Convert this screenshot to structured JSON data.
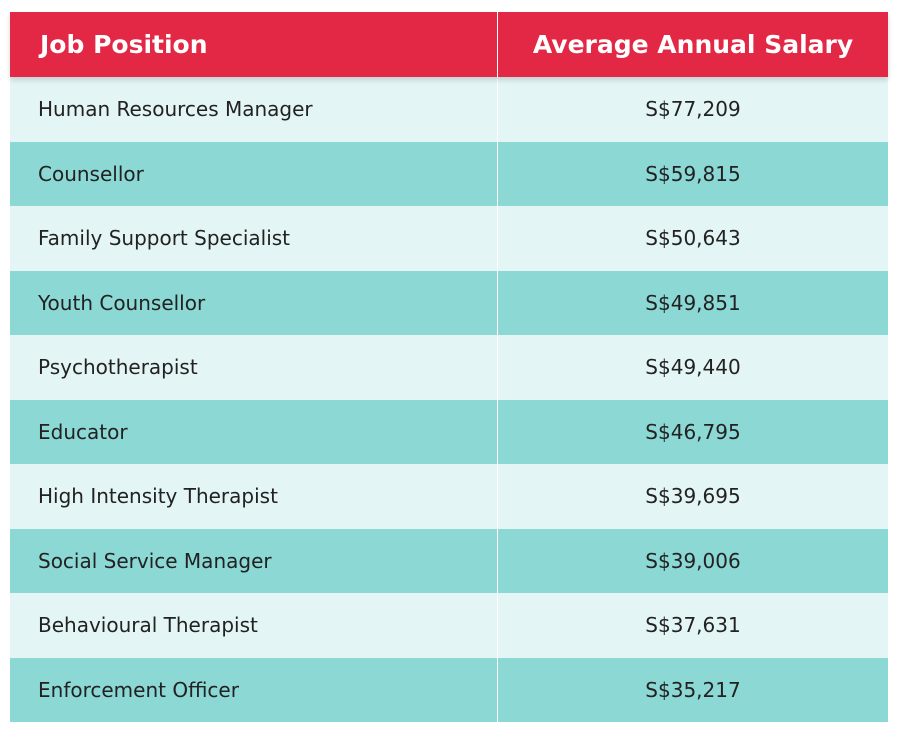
{
  "table": {
    "header": [
      "Job Position",
      "Average Annual Salary"
    ],
    "rows": [
      [
        "Human Resources Manager",
        "S$77,209"
      ],
      [
        "Counsellor",
        "S$59,815"
      ],
      [
        "Family Support Specialist",
        "S$50,643"
      ],
      [
        "Youth Counsellor",
        "S$49,851"
      ],
      [
        "Psychotherapist",
        "S$49,440"
      ],
      [
        "Educator",
        "S$46,795"
      ],
      [
        "High Intensity Therapist",
        "S$39,695"
      ],
      [
        "Social Service Manager",
        "S$39,006"
      ],
      [
        "Behavioural Therapist",
        "S$37,631"
      ],
      [
        "Enforcement Officer",
        "S$35,217"
      ]
    ]
  }
}
